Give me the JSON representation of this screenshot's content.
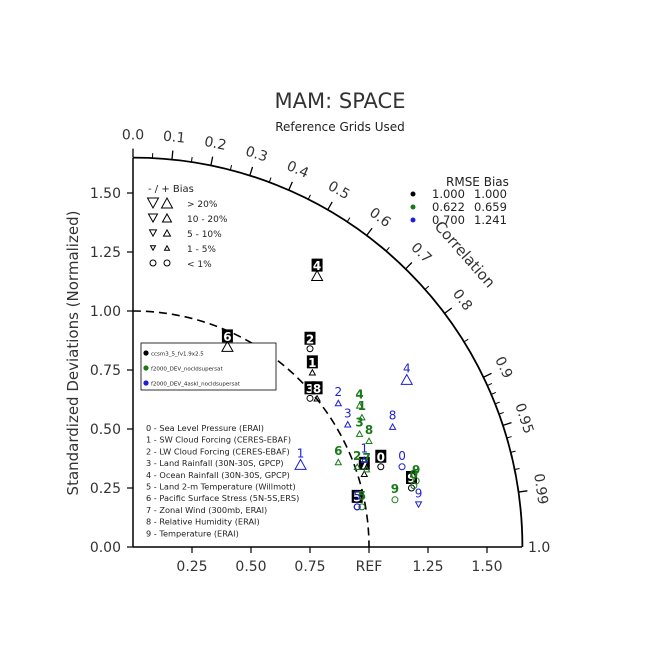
{
  "title": "MAM: SPACE",
  "subtitle": "Reference Grids Used",
  "chart_data": {
    "type": "scatter",
    "ylabel": "Standardized Deviations (Normalized)",
    "correlation_label": "Correlation",
    "reference_label": "REF",
    "x_ticks": [
      "0.25",
      "0.50",
      "0.75",
      "REF",
      "1.25",
      "1.50"
    ],
    "y_ticks": [
      "0.00",
      "0.25",
      "0.50",
      "0.75",
      "1.00",
      "1.25",
      "1.50"
    ],
    "std_max": 1.65,
    "right_end_label": "1.0",
    "correlation_ticks": [
      "0.0",
      "0.1",
      "0.2",
      "0.3",
      "0.4",
      "0.5",
      "0.6",
      "0.7",
      "0.8",
      "0.9",
      "0.95",
      "0.99"
    ],
    "bias_legend": {
      "header": "-  /  +     Bias",
      "rows": [
        "> 20%",
        "10 - 20%",
        "5 - 10%",
        "1 - 5%",
        "< 1%"
      ]
    },
    "rmse_legend": {
      "header": "RMSE  Bias",
      "rows": [
        {
          "color": "#000000",
          "rmse": "1.000",
          "bias": "1.000"
        },
        {
          "color": "#1a7a1a",
          "rmse": "0.622",
          "bias": "0.659"
        },
        {
          "color": "#1f1fd6",
          "rmse": "0.700",
          "bias": "1.241"
        }
      ]
    },
    "cases": [
      {
        "name": "ccsm3_5_fv1.9x2.5",
        "color": "#000000"
      },
      {
        "name": "f2000_DEV_nocldsupersat",
        "color": "#1a7a1a"
      },
      {
        "name": "f2000_DEV_4askl_nocldsupersat",
        "color": "#1f1fd6"
      }
    ],
    "variables": [
      "0 - Sea Level Pressure (ERAI)",
      "1 - SW Cloud Forcing (CERES-EBAF)",
      "2 - LW Cloud Forcing (CERES-EBAF)",
      "3 - Land Rainfall (30N-30S, GPCP)",
      "4 - Ocean Rainfall (30N-30S, GPCP)",
      "5 - Land 2-m Temperature (Willmott)",
      "6 - Pacific Surface Stress (5N-5S,ERS)",
      "7 - Zonal Wind (300mb, ERAI)",
      "8 - Relative Humidity (ERAI)",
      "9 - Temperature (ERAI)"
    ],
    "series": [
      {
        "name": "ccsm3_5_fv1.9x2.5",
        "color": "#000000",
        "points": [
          {
            "label": "0",
            "x": 1.05,
            "y": 0.34,
            "marker": "circle"
          },
          {
            "label": "2",
            "x": 0.75,
            "y": 0.84,
            "marker": "circle"
          },
          {
            "label": "3",
            "x": 0.75,
            "y": 0.63,
            "marker": "circle"
          },
          {
            "label": "5",
            "x": 0.95,
            "y": 0.17,
            "marker": "circle"
          },
          {
            "label": "7",
            "x": 0.98,
            "y": 0.31,
            "marker": "tri-up-small"
          },
          {
            "label": "8",
            "x": 0.78,
            "y": 0.63,
            "marker": "tri-up-small"
          },
          {
            "label": "9",
            "x": 1.18,
            "y": 0.25,
            "marker": "circle"
          },
          {
            "label": "1",
            "x": 0.76,
            "y": 0.74,
            "marker": "tri-up-small"
          },
          {
            "label": "4",
            "x": 0.78,
            "y": 1.15,
            "marker": "tri-up-large"
          },
          {
            "label": "6",
            "x": 0.4,
            "y": 0.85,
            "marker": "tri-up-large"
          }
        ]
      },
      {
        "name": "f2000_DEV_nocldsupersat",
        "color": "#1a7a1a",
        "points": [
          {
            "label": "4",
            "x": 0.96,
            "y": 0.6,
            "marker": "tri-up-small"
          },
          {
            "label": "6",
            "x": 0.87,
            "y": 0.36,
            "marker": "tri-up-small"
          },
          {
            "label": "8",
            "x": 1.0,
            "y": 0.45,
            "marker": "tri-up-small"
          },
          {
            "label": "1",
            "x": 0.97,
            "y": 0.55,
            "marker": "tri-up-small"
          },
          {
            "label": "9",
            "x": 1.2,
            "y": 0.28,
            "marker": "circle"
          },
          {
            "label": "0",
            "x": 1.19,
            "y": 0.26,
            "marker": "circle"
          },
          {
            "label": "5",
            "x": 0.97,
            "y": 0.17,
            "marker": "circle"
          },
          {
            "label": "3",
            "x": 0.96,
            "y": 0.48,
            "marker": "tri-up-small"
          },
          {
            "label": "2",
            "x": 0.95,
            "y": 0.34,
            "marker": "tri-up-small"
          },
          {
            "label": "7",
            "x": 0.99,
            "y": 0.33,
            "marker": "tri-up-small"
          },
          {
            "label": "9",
            "x": 1.11,
            "y": 0.2,
            "marker": "circle"
          }
        ]
      },
      {
        "name": "f2000_DEV_4askl_nocldsupersat",
        "color": "#1f1fd6",
        "points": [
          {
            "label": "0",
            "x": 1.14,
            "y": 0.34,
            "marker": "circle"
          },
          {
            "label": "1",
            "x": 0.71,
            "y": 0.35,
            "marker": "tri-up-large"
          },
          {
            "label": "2",
            "x": 0.87,
            "y": 0.61,
            "marker": "tri-up-small"
          },
          {
            "label": "3",
            "x": 0.91,
            "y": 0.52,
            "marker": "tri-up-small"
          },
          {
            "label": "4",
            "x": 1.16,
            "y": 0.71,
            "marker": "tri-up-large"
          },
          {
            "label": "5",
            "x": 0.95,
            "y": 0.17,
            "marker": "circle"
          },
          {
            "label": "8",
            "x": 1.1,
            "y": 0.51,
            "marker": "tri-up-small"
          },
          {
            "label": "9",
            "x": 1.21,
            "y": 0.18,
            "marker": "tri-down-small"
          },
          {
            "label": "1",
            "x": 0.98,
            "y": 0.37,
            "marker": "tri-up-small"
          }
        ]
      }
    ]
  }
}
